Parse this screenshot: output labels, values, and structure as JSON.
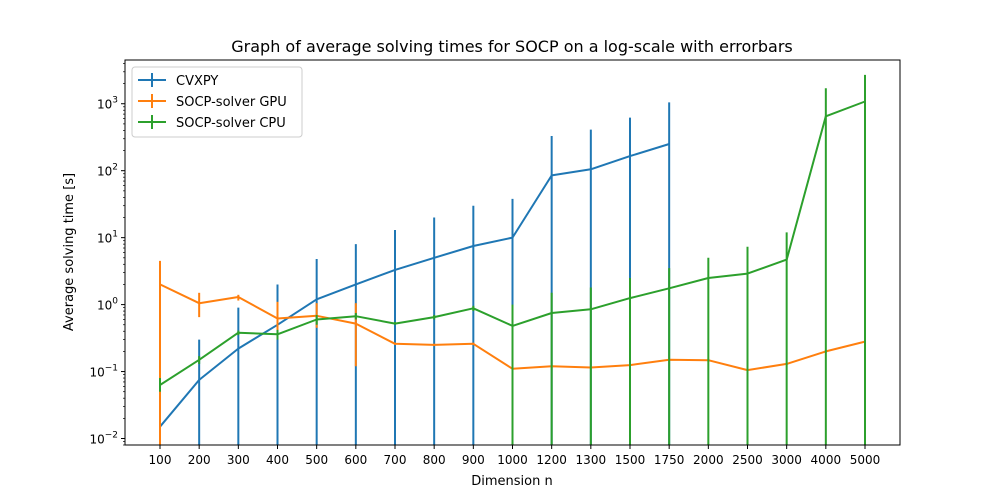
{
  "chart_data": {
    "type": "line",
    "title": "Graph of average solving times for SOCP on a log-scale with errorbars",
    "xlabel": "Dimension n",
    "ylabel": "Average solving time [s]",
    "yscale": "log",
    "ylim": [
      0.008,
      4500
    ],
    "categories": [
      "100",
      "200",
      "300",
      "400",
      "500",
      "600",
      "700",
      "800",
      "900",
      "1000",
      "1200",
      "1300",
      "1500",
      "1750",
      "2000",
      "2500",
      "3000",
      "4000",
      "5000"
    ],
    "y_ticks": [
      "10^-2",
      "10^-1",
      "10^0",
      "10^1",
      "10^2",
      "10^3"
    ],
    "legend_position": "top-left",
    "grid": false,
    "series": [
      {
        "name": "CVXPY",
        "color": "#1f77b4",
        "values": [
          0.015,
          0.075,
          0.22,
          0.5,
          1.2,
          2.0,
          3.3,
          5.0,
          7.5,
          10,
          85,
          105,
          165,
          250,
          null,
          null,
          null,
          null,
          null
        ],
        "err_low": [
          0.008,
          0.008,
          0.008,
          0.008,
          0.008,
          0.008,
          0.008,
          0.008,
          0.008,
          0.008,
          0.008,
          0.008,
          0.008,
          0.008,
          null,
          null,
          null,
          null,
          null
        ],
        "err_high": [
          0.04,
          0.3,
          0.9,
          2.0,
          4.8,
          8.0,
          13,
          20,
          30,
          38,
          330,
          410,
          620,
          1050,
          null,
          null,
          null,
          null,
          null
        ]
      },
      {
        "name": "SOCP-solver GPU",
        "color": "#ff7f0e",
        "values": [
          2.0,
          1.05,
          1.3,
          0.62,
          0.68,
          0.52,
          0.26,
          0.25,
          0.26,
          0.11,
          0.12,
          0.115,
          0.125,
          0.15,
          0.148,
          0.105,
          0.13,
          0.2,
          0.28
        ],
        "err_low": [
          0.008,
          0.65,
          1.15,
          0.35,
          0.45,
          0.12,
          0.25,
          0.24,
          0.25,
          0.105,
          0.115,
          0.11,
          0.12,
          0.145,
          0.142,
          0.1,
          0.125,
          0.19,
          0.27
        ],
        "err_high": [
          4.5,
          1.5,
          1.4,
          1.1,
          1.05,
          1.05,
          0.27,
          0.26,
          0.27,
          0.115,
          0.125,
          0.12,
          0.13,
          0.155,
          0.155,
          0.11,
          0.135,
          0.21,
          0.29
        ]
      },
      {
        "name": "SOCP-solver CPU",
        "color": "#2ca02c",
        "values": [
          0.063,
          0.15,
          0.38,
          0.36,
          0.6,
          0.67,
          0.52,
          0.65,
          0.88,
          0.48,
          0.75,
          0.85,
          1.25,
          1.75,
          2.5,
          2.9,
          4.7,
          650,
          1080
        ],
        "err_low": [
          0.05,
          0.13,
          0.35,
          0.3,
          0.5,
          0.6,
          0.5,
          0.6,
          0.8,
          0.008,
          0.008,
          0.008,
          0.008,
          0.008,
          0.008,
          0.008,
          0.008,
          0.008,
          0.008
        ],
        "err_high": [
          0.08,
          0.17,
          0.41,
          0.42,
          0.7,
          0.75,
          0.55,
          0.7,
          0.96,
          1.0,
          1.5,
          1.8,
          2.5,
          3.5,
          5.0,
          7.3,
          12,
          1700,
          2700
        ]
      }
    ]
  }
}
